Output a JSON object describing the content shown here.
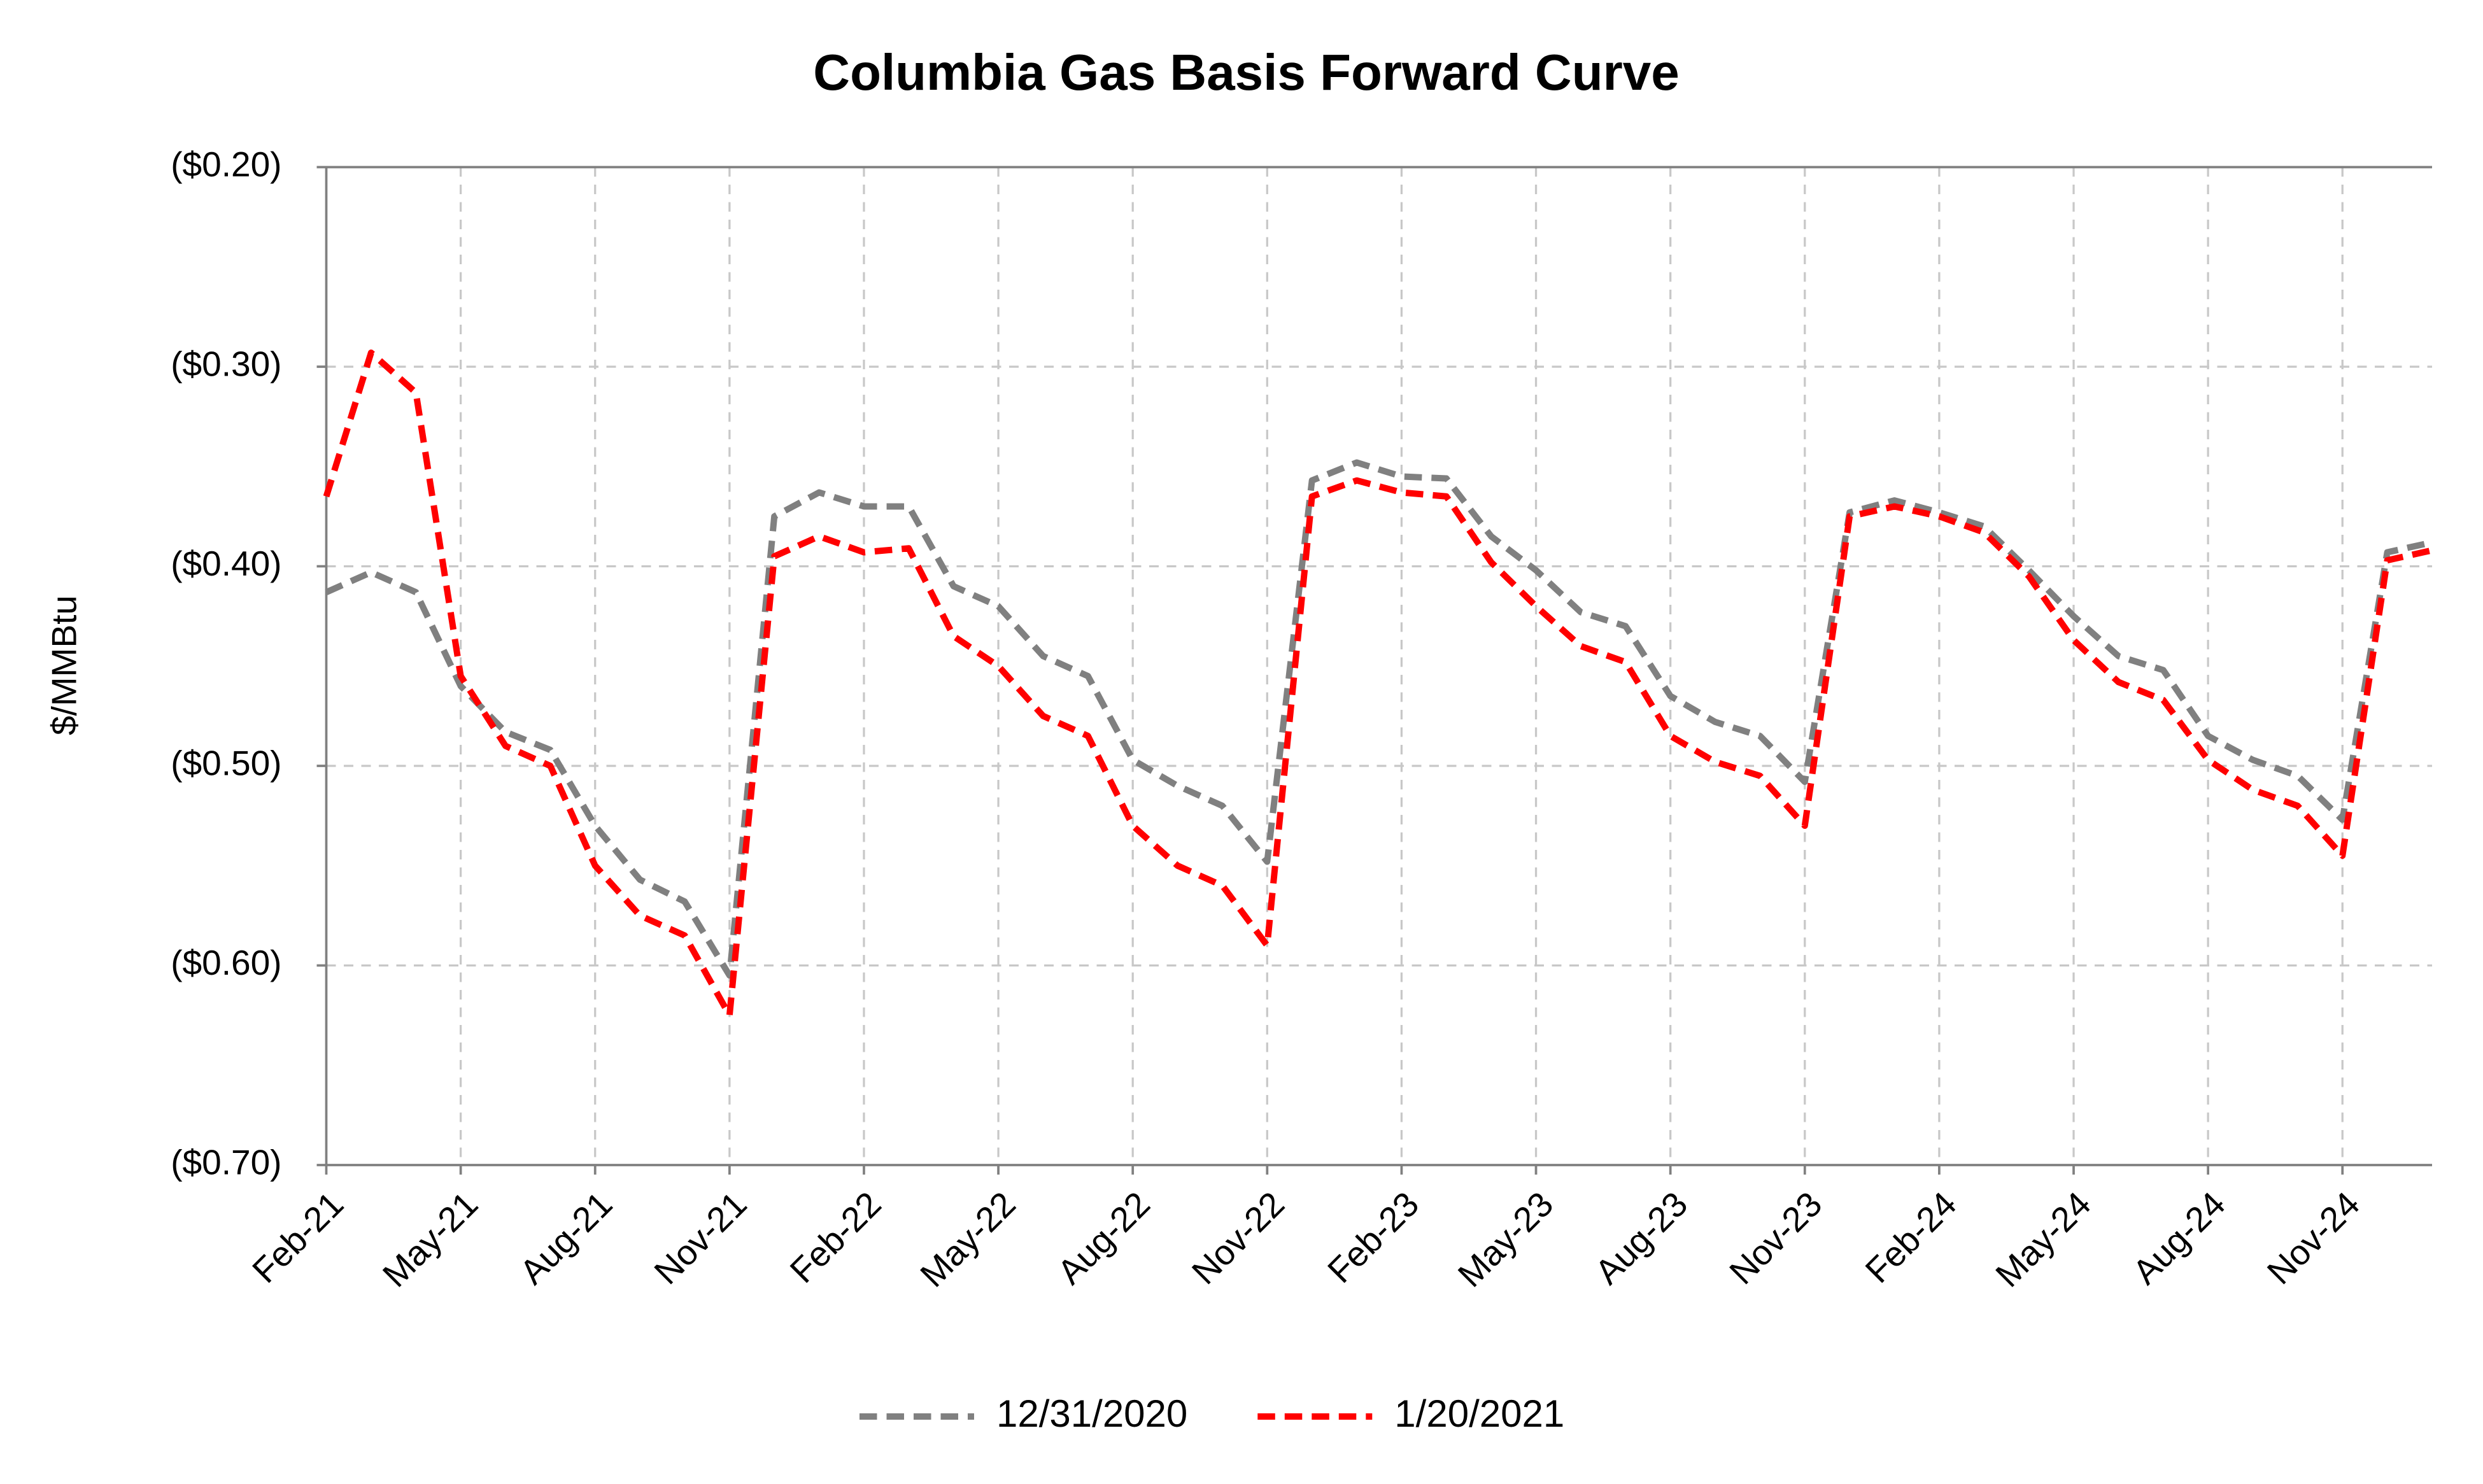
{
  "chart_data": {
    "type": "line",
    "title": "Columbia Gas Basis Forward Curve",
    "y_label": "$/MMBtu",
    "categories": [
      "Feb-21",
      null,
      null,
      "May-21",
      null,
      null,
      "Aug-21",
      null,
      null,
      "Nov-21",
      null,
      null,
      "Feb-22",
      null,
      null,
      "May-22",
      null,
      null,
      "Aug-22",
      null,
      null,
      "Nov-22",
      null,
      null,
      "Feb-23",
      null,
      null,
      "May-23",
      null,
      null,
      "Aug-23",
      null,
      null,
      "Nov-23",
      null,
      null,
      "Feb-24",
      null,
      null,
      "May-24",
      null,
      null,
      "Aug-24",
      null,
      null,
      "Nov-24",
      null,
      null
    ],
    "series": [
      {
        "name": "12/31/2020",
        "color": "#808080",
        "values": [
          -0.413,
          -0.403,
          -0.413,
          -0.46,
          -0.483,
          -0.492,
          -0.53,
          -0.557,
          -0.568,
          -0.605,
          -0.375,
          -0.363,
          -0.37,
          -0.37,
          -0.41,
          -0.42,
          -0.445,
          -0.455,
          -0.497,
          -0.51,
          -0.52,
          -0.548,
          -0.357,
          -0.348,
          -0.355,
          -0.356,
          -0.385,
          -0.402,
          -0.423,
          -0.43,
          -0.465,
          -0.478,
          -0.485,
          -0.508,
          -0.373,
          -0.367,
          -0.373,
          -0.38,
          -0.402,
          -0.425,
          -0.445,
          -0.452,
          -0.485,
          -0.497,
          -0.505,
          -0.527,
          -0.393,
          -0.388
        ]
      },
      {
        "name": "1/20/2021",
        "color": "#ff0000",
        "values": [
          -0.365,
          -0.293,
          -0.313,
          -0.455,
          -0.49,
          -0.5,
          -0.55,
          -0.575,
          -0.585,
          -0.625,
          -0.395,
          -0.385,
          -0.393,
          -0.391,
          -0.435,
          -0.45,
          -0.475,
          -0.485,
          -0.53,
          -0.55,
          -0.56,
          -0.59,
          -0.365,
          -0.357,
          -0.363,
          -0.365,
          -0.398,
          -0.42,
          -0.44,
          -0.448,
          -0.485,
          -0.498,
          -0.505,
          -0.53,
          -0.375,
          -0.37,
          -0.375,
          -0.383,
          -0.405,
          -0.437,
          -0.458,
          -0.467,
          -0.497,
          -0.512,
          -0.52,
          -0.545,
          -0.397,
          -0.392
        ]
      }
    ],
    "ylim": [
      -0.7,
      -0.2
    ],
    "yticks": [
      {
        "value": -0.7,
        "label": "($0.70)"
      },
      {
        "value": -0.6,
        "label": "($0.60)"
      },
      {
        "value": -0.5,
        "label": "($0.50)"
      },
      {
        "value": -0.4,
        "label": "($0.40)"
      },
      {
        "value": -0.3,
        "label": "($0.30)"
      },
      {
        "value": -0.2,
        "label": "($0.20)"
      }
    ],
    "grid": true,
    "legend": "bottom"
  }
}
